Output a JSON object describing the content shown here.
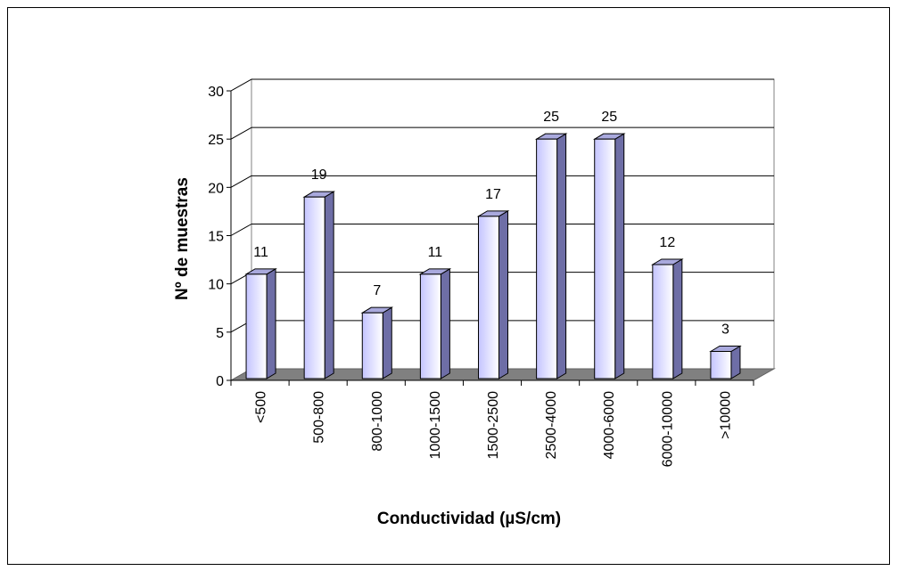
{
  "chart_data": {
    "type": "bar",
    "categories": [
      "<500",
      "500-800",
      "800-1000",
      "1000-1500",
      "1500-2500",
      "2500-4000",
      "4000-6000",
      "6000-10000",
      ">10000"
    ],
    "values": [
      11,
      19,
      7,
      11,
      17,
      25,
      25,
      12,
      3
    ],
    "data_labels": [
      "11",
      "19",
      "7",
      "11",
      "17",
      "25",
      "25",
      "12",
      "3"
    ],
    "title": "",
    "xlabel": "Conductividad (µS/cm)",
    "ylabel": "Nº de muestras",
    "ylim": [
      0,
      30
    ],
    "yticks": [
      "0",
      "5",
      "10",
      "15",
      "20",
      "25",
      "30"
    ],
    "grid": true,
    "legend": "none",
    "colors": {
      "bar_front_left": "#c8c8ff",
      "bar_front_right": "#ffffff",
      "bar_side": "#6e6ea6",
      "bar_top": "#a9a9dd",
      "floor": "#808080",
      "wall": "#ffffff",
      "grid": "#000000"
    }
  }
}
